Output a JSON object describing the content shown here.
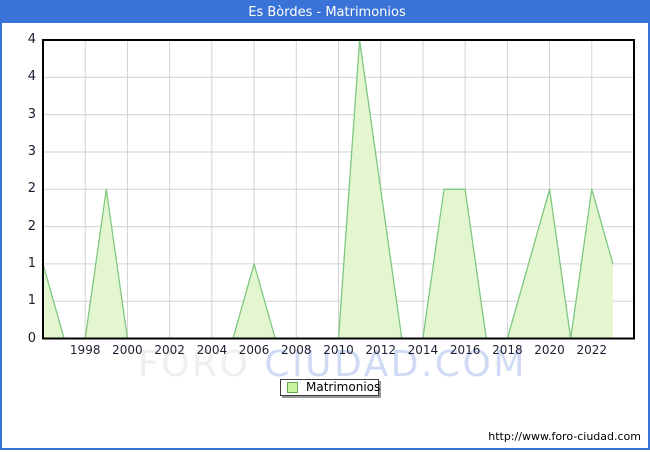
{
  "window": {
    "title": "Es Bòrdes - Matrimonios"
  },
  "colors": {
    "accent_blue": "#3a73d8",
    "plot_border": "#000000",
    "grid": "#d3d3d3",
    "area_fill": "#e3f6d0",
    "area_stroke": "#7fc87f",
    "tick_label": "#1e1e32",
    "legend_swatch_fill": "#c9f2a0",
    "legend_swatch_border": "#64a850",
    "legend_border": "#3c3c3c",
    "legend_shadow": "#999999",
    "watermark_gray": "#efefef",
    "watermark_blue": "#cfdaf4",
    "url_color": "#000000"
  },
  "chart_data": {
    "type": "area",
    "title": "Es Bòrdes - Matrimonios",
    "x": [
      1996,
      1997,
      1998,
      1999,
      2000,
      2001,
      2002,
      2003,
      2004,
      2005,
      2006,
      2007,
      2008,
      2009,
      2010,
      2011,
      2012,
      2013,
      2014,
      2015,
      2016,
      2017,
      2018,
      2019,
      2020,
      2021,
      2022,
      2023
    ],
    "values": [
      1,
      0,
      0,
      2,
      0,
      0,
      0,
      0,
      0,
      0,
      1,
      0,
      0,
      0,
      0,
      4,
      2,
      0,
      0,
      2,
      2,
      0,
      0,
      1,
      2,
      0,
      2,
      1
    ],
    "xlabel": "",
    "ylabel": "",
    "xlim": [
      1996,
      2024
    ],
    "ylim": [
      0,
      4
    ],
    "y_tick_step": 0.5,
    "y_tick_labels": [
      "4",
      "4",
      "3",
      "3",
      "2",
      "2",
      "1",
      "1",
      "0"
    ],
    "x_ticks": [
      1998,
      2000,
      2002,
      2004,
      2006,
      2008,
      2010,
      2012,
      2014,
      2016,
      2018,
      2020,
      2022
    ],
    "grid": true,
    "legend_position": "bottom-center",
    "legend_entries": [
      "Matrimonios"
    ]
  },
  "legend": {
    "label": "Matrimonios"
  },
  "watermark": {
    "part1": "FORO",
    "part2": "CIUDAD.COM"
  },
  "footer": {
    "url": "http://www.foro-ciudad.com"
  }
}
